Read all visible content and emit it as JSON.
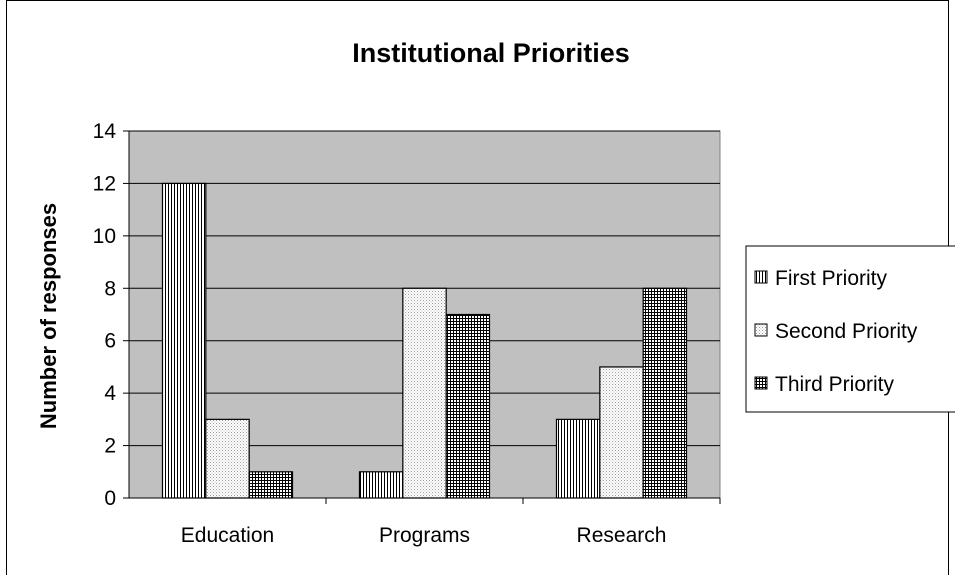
{
  "chart_data": {
    "type": "bar",
    "title": "Institutional Priorities",
    "xlabel": "",
    "ylabel": "Number of responses",
    "categories": [
      "Education",
      "Programs",
      "Research"
    ],
    "series": [
      {
        "name": "First Priority",
        "values": [
          12,
          1,
          3
        ],
        "pattern": "vertical-lines"
      },
      {
        "name": "Second Priority",
        "values": [
          3,
          8,
          5
        ],
        "pattern": "dots"
      },
      {
        "name": "Third Priority",
        "values": [
          1,
          7,
          8
        ],
        "pattern": "grid"
      }
    ],
    "ylim": [
      0,
      14
    ],
    "yticks": [
      0,
      2,
      4,
      6,
      8,
      10,
      12,
      14
    ],
    "grid": true,
    "legend": "right",
    "colors": {
      "plot_bg": "#c0c0c0",
      "bar_fill": "#ffffff",
      "outline": "#000000"
    }
  }
}
